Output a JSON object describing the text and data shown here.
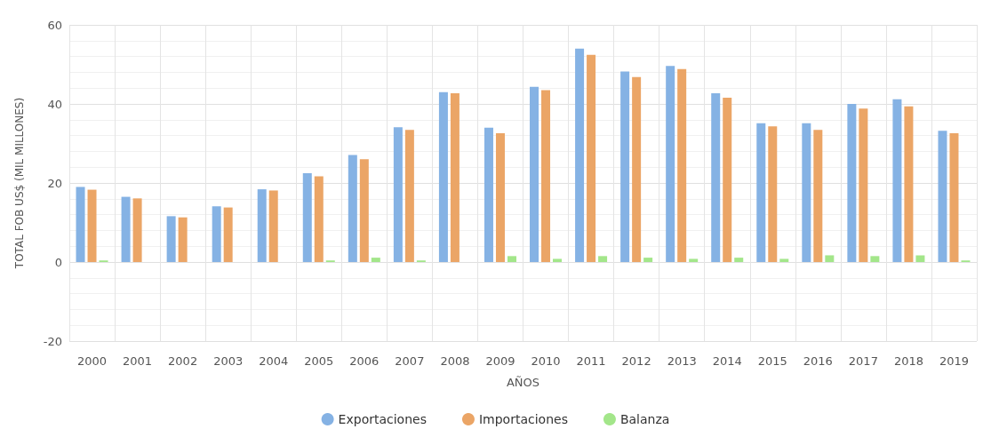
{
  "chart_data": {
    "type": "bar",
    "xlabel": "AÑOS",
    "ylabel": "TOTAL FOB US$ (MIL MILLONES)",
    "categories": [
      "2000",
      "2001",
      "2002",
      "2003",
      "2004",
      "2005",
      "2006",
      "2007",
      "2008",
      "2009",
      "2010",
      "2011",
      "2012",
      "2013",
      "2014",
      "2015",
      "2016",
      "2017",
      "2018",
      "2019"
    ],
    "series": [
      {
        "name": "Exportaciones",
        "color": "#85b2e4",
        "values": [
          19,
          16.5,
          11.6,
          14.1,
          18.4,
          22.5,
          27.1,
          34.1,
          43,
          34,
          44.3,
          54,
          48.2,
          49.6,
          42.7,
          35.1,
          35.1,
          40,
          41.2,
          33.2
        ]
      },
      {
        "name": "Importaciones",
        "color": "#eba566",
        "values": [
          18.3,
          16.1,
          11.3,
          13.8,
          18.1,
          21.7,
          26,
          33.4,
          42.7,
          32.6,
          43.5,
          52.4,
          46.8,
          48.8,
          41.6,
          34.3,
          33.4,
          38.8,
          39.4,
          32.6
        ]
      },
      {
        "name": "Balanza",
        "color": "#a3e68a",
        "values": [
          0.4,
          null,
          null,
          null,
          null,
          0.4,
          1.1,
          0.4,
          null,
          1.5,
          0.8,
          1.5,
          1.1,
          0.8,
          1.1,
          0.8,
          1.7,
          1.5,
          1.7,
          0.4
        ]
      }
    ],
    "ylim": [
      -20,
      60
    ],
    "yticks": [
      -20,
      0,
      20,
      40,
      60
    ],
    "grid": true,
    "legend": "bottom"
  }
}
